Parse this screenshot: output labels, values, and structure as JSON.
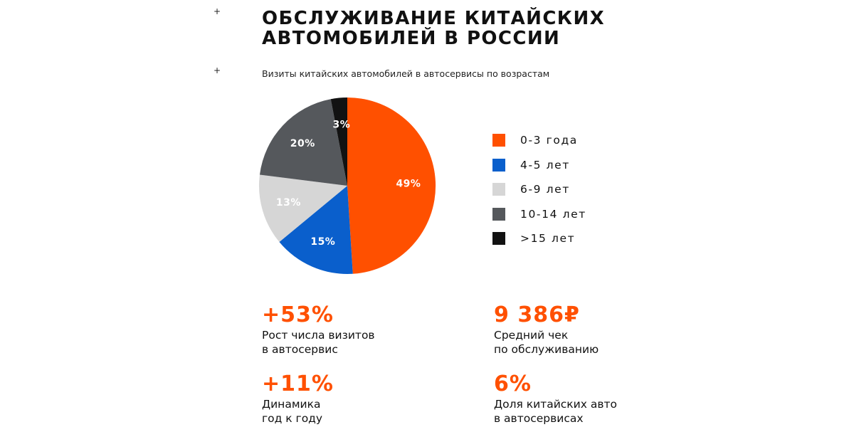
{
  "decor": {
    "plus_1": "+",
    "plus_2": "+"
  },
  "header": {
    "title_line_1": "ОБСЛУЖИВАНИЕ КИТАЙСКИХ",
    "title_line_2": "АВТОМОБИЛЕЙ В РОССИИ"
  },
  "chart_data": {
    "type": "pie",
    "title": "Визиты китайских автомобилей в автосервисы по возрастам",
    "categories": [
      "0-3 года",
      "4-5 лет",
      "6-9 лет",
      "10-14 лет",
      ">15 лет"
    ],
    "values": [
      49,
      15,
      13,
      20,
      3
    ],
    "value_labels": [
      "49%",
      "15%",
      "13%",
      "20%",
      "3%"
    ],
    "colors": [
      "#ff5000",
      "#0a5fcc",
      "#d6d6d6",
      "#55585c",
      "#121212"
    ],
    "label_colors": [
      "#ffffff",
      "#ffffff",
      "#ffffff",
      "#ffffff",
      "#ffffff"
    ],
    "start_angle_deg": 0,
    "direction": "clockwise",
    "legend_position": "right"
  },
  "accent_color": "#ff5000",
  "stats": [
    {
      "value": "+53%",
      "desc_line_1": "Рост числа визитов",
      "desc_line_2": "в автосервис"
    },
    {
      "value": "9 386₽",
      "desc_line_1": "Средний чек",
      "desc_line_2": "по обслуживанию"
    },
    {
      "value": "+11%",
      "desc_line_1": "Динамика",
      "desc_line_2": "год к году"
    },
    {
      "value": "6%",
      "desc_line_1": "Доля китайских авто",
      "desc_line_2": "в автосервисах"
    }
  ]
}
